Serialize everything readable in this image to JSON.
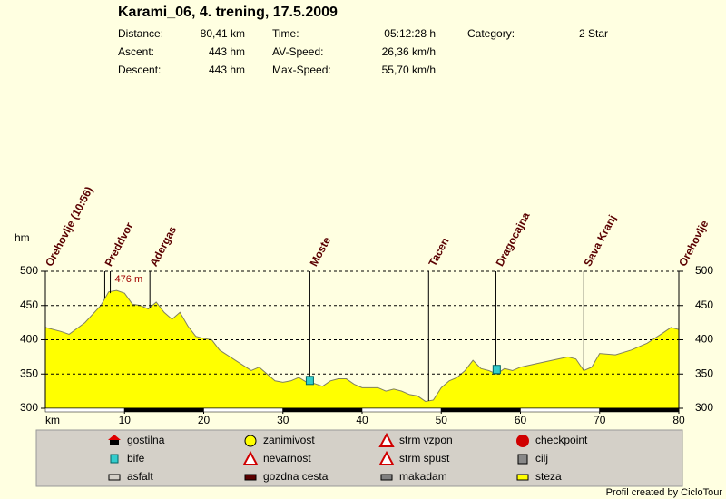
{
  "chart_data": {
    "type": "area",
    "title": "Karami_06, 4. trening, 17.5.2009",
    "stats": [
      {
        "label": "Distance:",
        "value": "80,41 km"
      },
      {
        "label": "Ascent:",
        "value": "443 hm"
      },
      {
        "label": "Descent:",
        "value": "443 hm"
      },
      {
        "label": "Time:",
        "value": "05:12:28 h"
      },
      {
        "label": "AV-Speed:",
        "value": "26,36 km/h"
      },
      {
        "label": "Max-Speed:",
        "value": "55,70 km/h"
      },
      {
        "label": "Category:",
        "value": "2 Star"
      }
    ],
    "y_label": "hm",
    "x_label": "km",
    "xlim": [
      0,
      80
    ],
    "ylim": [
      300,
      500
    ],
    "xticks": [
      10,
      20,
      30,
      40,
      50,
      60,
      70,
      80
    ],
    "yticks": [
      300,
      350,
      400,
      450,
      500
    ],
    "grid": true,
    "color": "#ffff00",
    "x": [
      0,
      2,
      3,
      5,
      7,
      8,
      9,
      10,
      11,
      12,
      13,
      14,
      15,
      16,
      17,
      18,
      19,
      20,
      21,
      22,
      24,
      26,
      27,
      28,
      29,
      30,
      31,
      32,
      33,
      34,
      35,
      36,
      37,
      38,
      39,
      40,
      42,
      43,
      44,
      45,
      46,
      47,
      48,
      49,
      50,
      51,
      52,
      53,
      54,
      55,
      56,
      57,
      58,
      59,
      60,
      62,
      64,
      66,
      67,
      68,
      69,
      70,
      72,
      74,
      76,
      78,
      79,
      80
    ],
    "values": [
      418,
      412,
      408,
      425,
      450,
      470,
      472,
      468,
      452,
      450,
      445,
      455,
      440,
      430,
      440,
      420,
      405,
      402,
      400,
      385,
      370,
      355,
      360,
      350,
      340,
      338,
      340,
      345,
      338,
      336,
      332,
      340,
      343,
      343,
      335,
      330,
      330,
      325,
      328,
      325,
      320,
      318,
      310,
      312,
      330,
      340,
      345,
      355,
      370,
      358,
      355,
      350,
      358,
      355,
      360,
      365,
      370,
      375,
      372,
      355,
      360,
      380,
      378,
      385,
      395,
      410,
      418,
      415
    ],
    "waypoints": [
      {
        "label": "Orehovlje (10:56)",
        "x": 0
      },
      {
        "label": "Preddvor",
        "x": 7.5
      },
      {
        "label": "Adergas",
        "x": 13.2
      },
      {
        "label": "Moste",
        "x": 33.4
      },
      {
        "label": "Tacen",
        "x": 48.4
      },
      {
        "label": "Dragocajna",
        "x": 56.9
      },
      {
        "label": "Sava Kranj",
        "x": 68
      },
      {
        "label": "Orehovlje",
        "x": 80
      }
    ],
    "annotation": {
      "text": "476 m",
      "value": 476
    },
    "bife_markers": [
      {
        "x": 33.4,
        "y": 340
      },
      {
        "x": 57,
        "y": 356
      }
    ],
    "legend": [
      "gostilna",
      "bife",
      "asfalt",
      "zanimivost",
      "nevarnost",
      "gozdna cesta",
      "strm vzpon",
      "strm spust",
      "makadam",
      "checkpoint",
      "cilj",
      "steza"
    ],
    "credit": "Profil created by CicloTour"
  }
}
